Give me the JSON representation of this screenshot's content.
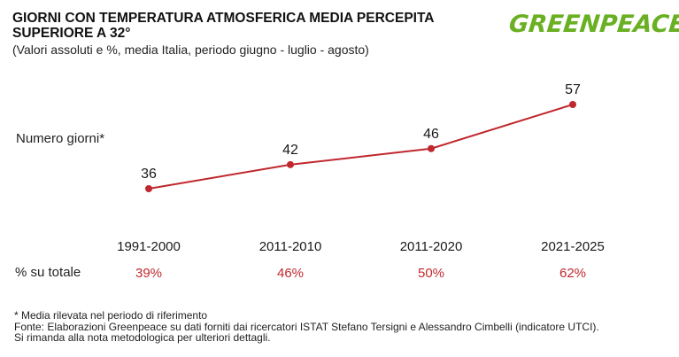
{
  "header": {
    "title": "GIORNI CON TEMPERATURA ATMOSFERICA MEDIA PERCEPITA SUPERIORE A 32°",
    "subtitle": "(Valori assoluti e %, media Italia, periodo giugno - luglio - agosto)",
    "logo": "GREENPEACE"
  },
  "colors": {
    "series": "#c0282d",
    "logo": "#6ab023",
    "text": "#1a1a1a"
  },
  "chart_data": {
    "type": "line",
    "categories": [
      "1991-2000",
      "2011-2010",
      "2011-2020",
      "2021-2025"
    ],
    "series": [
      {
        "values": [
          36,
          42,
          46,
          57
        ]
      }
    ],
    "ylabel": "Numero giorni*",
    "data_labels": [
      "36",
      "42",
      "46",
      "57"
    ],
    "ylim": [
      30,
      60
    ],
    "grid": false,
    "legend": "none"
  },
  "percent_row": {
    "label": "% su totale",
    "values": [
      "39%",
      "46%",
      "50%",
      "62%"
    ]
  },
  "notes": [
    "* Media rilevata nel periodo di riferimento",
    "Fonte: Elaborazioni Greenpeace su dati forniti dai ricercatori ISTAT Stefano Tersigni e Alessandro Cimbelli (indicatore UTCI).",
    "Si rimanda alla nota metodologica per ulteriori dettagli."
  ]
}
